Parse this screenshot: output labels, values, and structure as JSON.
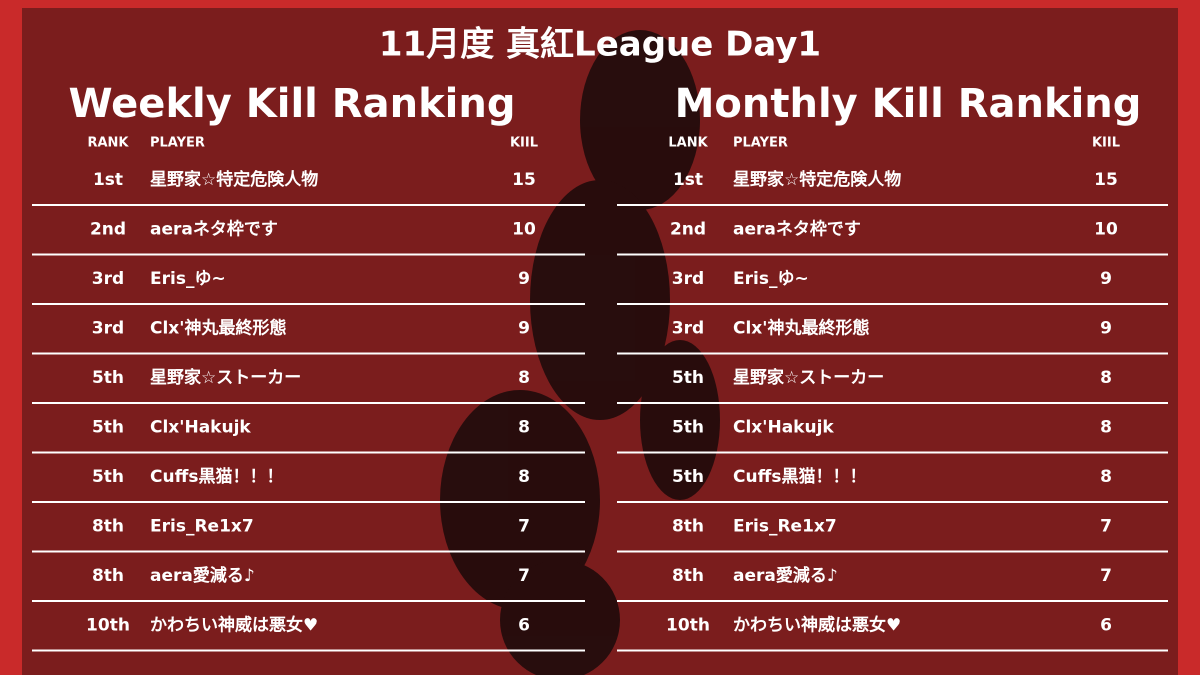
{
  "title": "11月度 真紅League Day1",
  "tables": [
    {
      "title": "Weekly Kill Ranking",
      "headers": [
        "RANK",
        "PLAYER",
        "KIIL"
      ],
      "rows": [
        [
          "1st",
          "星野家☆特定危険人物",
          15
        ],
        [
          "2nd",
          "aeraネタ枠です",
          10
        ],
        [
          "3rd",
          "Eris_ゆ~",
          9
        ],
        [
          "3rd",
          "Clx'神丸最終形態",
          9
        ],
        [
          "5th",
          "星野家☆ストーカー",
          8
        ],
        [
          "5th",
          "Clx'Hakujk",
          8
        ],
        [
          "5th",
          "Cuffs黒猫！！！",
          8
        ],
        [
          "8th",
          "Eris_Re1x7",
          7
        ],
        [
          "8th",
          "aera愛減る♪",
          7
        ],
        [
          "10th",
          "かわちい神威は悪女♥",
          6
        ]
      ]
    },
    {
      "title": "Monthly Kill Ranking",
      "headers": [
        "LANK",
        "PLAYER",
        "KIIL"
      ],
      "rows": [
        [
          "1st",
          "星野家☆特定危険人物",
          15
        ],
        [
          "2nd",
          "aeraネタ枠です",
          10
        ],
        [
          "3rd",
          "Eris_ゆ~",
          9
        ],
        [
          "3rd",
          "Clx'神丸最終形態",
          9
        ],
        [
          "5th",
          "星野家☆ストーカー",
          8
        ],
        [
          "5th",
          "Clx'Hakujk",
          8
        ],
        [
          "5th",
          "Cuffs黒猫！！！",
          8
        ],
        [
          "8th",
          "Eris_Re1x7",
          7
        ],
        [
          "8th",
          "aera愛減る♪",
          7
        ],
        [
          "10th",
          "かわちい神威は悪女♥",
          6
        ]
      ]
    }
  ]
}
